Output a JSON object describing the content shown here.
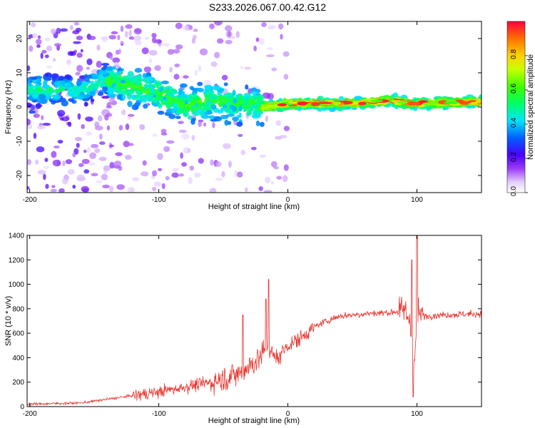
{
  "title": "S233.2026.067.00.42.G12",
  "chart_data": [
    {
      "type": "heatmap",
      "xlabel": "Height of straight line (km)",
      "ylabel": "Frequency (Hz)",
      "xlim": [
        -202,
        150
      ],
      "ylim": [
        -25,
        25
      ],
      "xticks": [
        -200,
        -100,
        0,
        100
      ],
      "yticks": [
        -20,
        -10,
        0,
        10,
        20
      ],
      "colorbar": {
        "label": "Normalized spectral amplitude",
        "range": [
          0,
          1
        ],
        "ticks": [
          "0.0",
          "0.2",
          "0.4",
          "0.6",
          "0.8"
        ],
        "tick_values": [
          0,
          0.2,
          0.4,
          0.6,
          0.8
        ]
      },
      "ridge": [
        {
          "x": -200,
          "y": 5
        },
        {
          "x": -160,
          "y": 5
        },
        {
          "x": -140,
          "y": 8
        },
        {
          "x": -120,
          "y": 6
        },
        {
          "x": -100,
          "y": 4
        },
        {
          "x": -80,
          "y": 0
        },
        {
          "x": -60,
          "y": 2
        },
        {
          "x": -40,
          "y": 1
        },
        {
          "x": -20,
          "y": 0
        },
        {
          "x": 0,
          "y": 1
        },
        {
          "x": 20,
          "y": 1
        },
        {
          "x": 50,
          "y": 1
        },
        {
          "x": 80,
          "y": 2
        },
        {
          "x": 95,
          "y": 1
        },
        {
          "x": 150,
          "y": 1.5
        }
      ]
    },
    {
      "type": "line",
      "xlabel": "Height of straight line (km)",
      "ylabel": "SNR (10 * v/v)",
      "xlim": [
        -202,
        150
      ],
      "ylim": [
        0,
        1400
      ],
      "xticks": [
        -200,
        -100,
        0,
        100
      ],
      "yticks": [
        0,
        200,
        400,
        600,
        800,
        1000,
        1200,
        1400
      ],
      "series": [
        {
          "color": "#e8352e",
          "x": [
            -202,
            -180,
            -160,
            -140,
            -120,
            -100,
            -80,
            -60,
            -40,
            -30,
            -20,
            -15,
            -10,
            0,
            10,
            20,
            30,
            40,
            60,
            80,
            90,
            95,
            98,
            100,
            105,
            120,
            150
          ],
          "y": [
            20,
            25,
            30,
            60,
            90,
            120,
            160,
            200,
            260,
            330,
            420,
            500,
            380,
            500,
            560,
            650,
            700,
            740,
            760,
            770,
            790,
            700,
            300,
            760,
            740,
            750,
            760
          ]
        }
      ],
      "spikes": [
        {
          "x": -15,
          "y": 1040
        },
        {
          "x": -17,
          "y": 880
        },
        {
          "x": -35,
          "y": 750
        },
        {
          "x": 97,
          "y": 80
        },
        {
          "x": 96,
          "y": 1200
        },
        {
          "x": 100,
          "y": 1400
        }
      ]
    }
  ]
}
